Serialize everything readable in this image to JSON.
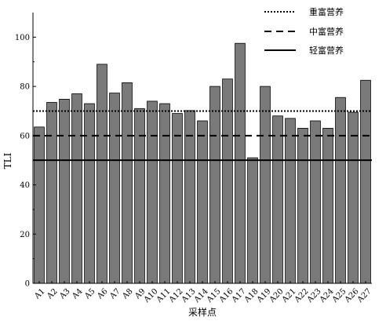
{
  "chart_data": {
    "type": "bar",
    "title": "",
    "xlabel": "采样点",
    "ylabel": "TLI",
    "ylim": [
      0,
      110
    ],
    "yticks": [
      0,
      20,
      40,
      60,
      80,
      100
    ],
    "categories": [
      "A1",
      "A2",
      "A3",
      "A4",
      "A5",
      "A6",
      "A7",
      "A8",
      "A9",
      "A10",
      "A11",
      "A12",
      "A13",
      "A14",
      "A15",
      "A16",
      "A17",
      "A18",
      "A19",
      "A20",
      "A21",
      "A22",
      "A23",
      "A24",
      "A25",
      "A26",
      "A27"
    ],
    "series": [
      {
        "values": [
          63.5,
          73.5,
          74.8,
          77.0,
          73.0,
          89.0,
          77.3,
          81.5,
          71.0,
          74.0,
          73.0,
          69.0,
          70.2,
          66.0,
          80.0,
          83.0,
          97.5,
          51.0,
          80.0,
          68.0,
          67.0,
          63.0,
          66.0,
          63.0,
          75.5,
          69.5,
          82.5
        ],
        "color": "#7a7a7a"
      }
    ],
    "reference_lines": [
      {
        "name": "重富营养",
        "value": 70,
        "style": "dotted"
      },
      {
        "name": "中富营养",
        "value": 60,
        "style": "dashed"
      },
      {
        "name": "轻富营养",
        "value": 50,
        "style": "solid"
      }
    ],
    "legend_position": "top-right",
    "grid": false
  }
}
